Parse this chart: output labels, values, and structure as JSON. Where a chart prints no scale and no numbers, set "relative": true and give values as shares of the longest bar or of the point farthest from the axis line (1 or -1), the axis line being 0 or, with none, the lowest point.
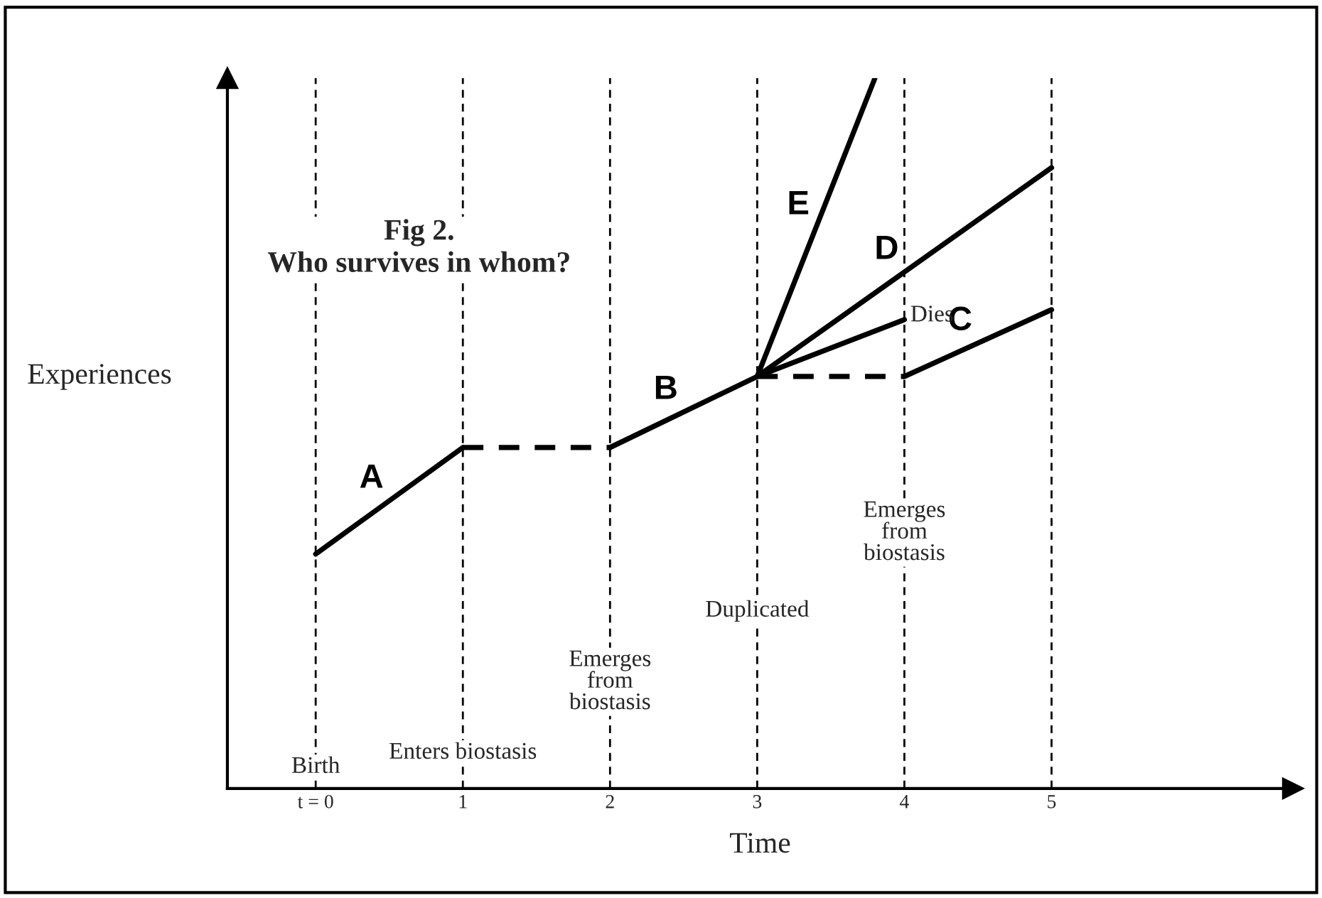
{
  "chart_data": {
    "type": "line",
    "title": "Fig 2.\nWho survives in whom?",
    "xlabel": "Time",
    "ylabel": "Experiences",
    "relative": true,
    "xlim": [
      -0.6,
      6.64
    ],
    "xticks": [
      {
        "value": 0,
        "label": "t = 0"
      },
      1,
      2,
      3,
      4,
      5
    ],
    "grid": false,
    "legend": false,
    "marker": "none",
    "series": [
      {
        "name": "A",
        "color": "#000000",
        "line_style": "solid",
        "x": [
          0,
          1
        ],
        "values": [
          0.33,
          0.48
        ]
      },
      {
        "color": "#000000",
        "line_style": "dashed",
        "x": [
          1,
          2
        ],
        "values": [
          0.48,
          0.48
        ]
      },
      {
        "name": "B",
        "color": "#000000",
        "line_style": "solid",
        "x": [
          2,
          3,
          4
        ],
        "values": [
          0.48,
          0.58,
          0.66
        ]
      },
      {
        "name": "E",
        "color": "#000000",
        "line_style": "solid",
        "x": [
          3,
          3.8
        ],
        "values": [
          0.58,
          1.0
        ]
      },
      {
        "name": "D",
        "color": "#000000",
        "line_style": "solid",
        "x": [
          3,
          5
        ],
        "values": [
          0.58,
          0.874
        ]
      },
      {
        "color": "#000000",
        "line_style": "dashed",
        "x": [
          3,
          4
        ],
        "values": [
          0.58,
          0.58
        ]
      },
      {
        "name": "C",
        "color": "#000000",
        "line_style": "solid",
        "x": [
          4,
          5
        ],
        "values": [
          0.58,
          0.674
        ]
      }
    ],
    "ref_lines": [
      {
        "axis": "x",
        "value": 0,
        "label": "Birth",
        "color": "#000000",
        "line_style": "dashed"
      },
      {
        "axis": "x",
        "value": 1,
        "label": "Enters biostasis",
        "color": "#000000",
        "line_style": "dashed"
      },
      {
        "axis": "x",
        "value": 2,
        "label": "Emerges\nfrom\nbiostasis",
        "color": "#000000",
        "line_style": "dashed"
      },
      {
        "axis": "x",
        "value": 3,
        "label": "Duplicated",
        "color": "#000000",
        "line_style": "dashed"
      },
      {
        "axis": "x",
        "value": 4,
        "label": "Emerges\nfrom\nbiostasis",
        "color": "#000000",
        "line_style": "dashed"
      },
      {
        "axis": "x",
        "value": 5,
        "label": null,
        "color": "#000000",
        "line_style": "dashed"
      }
    ],
    "annotations": [
      {
        "text": "Dies",
        "x": 4,
        "y": 0.66
      }
    ]
  }
}
